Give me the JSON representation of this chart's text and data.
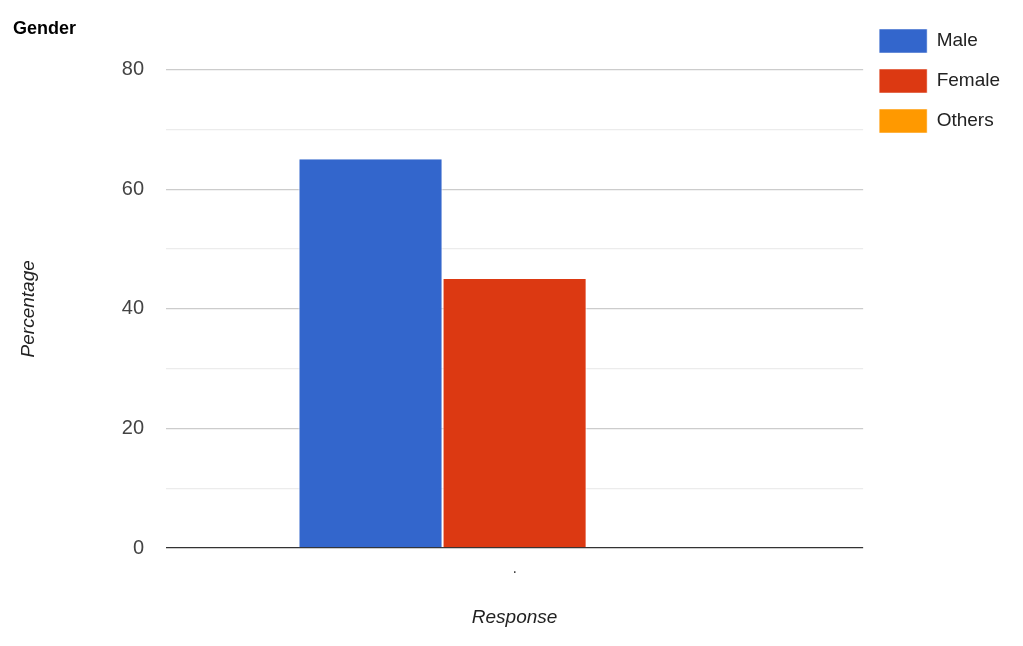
{
  "chart_data": {
    "type": "bar",
    "title": "Gender",
    "xlabel": "Response",
    "ylabel": "Percentage",
    "categories": [
      "."
    ],
    "series": [
      {
        "name": "Male",
        "color": "#3366cc",
        "values": [
          65
        ]
      },
      {
        "name": "Female",
        "color": "#dc3912",
        "values": [
          45
        ]
      },
      {
        "name": "Others",
        "color": "#ff9900",
        "values": [
          0
        ]
      }
    ],
    "ylim": [
      0,
      80
    ],
    "yticks": [
      0,
      {
        "value": 10,
        "label": null
      },
      20,
      {
        "value": 30,
        "label": null
      },
      40,
      {
        "value": 50,
        "label": null
      },
      60,
      {
        "value": 70,
        "label": null
      },
      80
    ],
    "grid": "y",
    "legend": "top right"
  }
}
